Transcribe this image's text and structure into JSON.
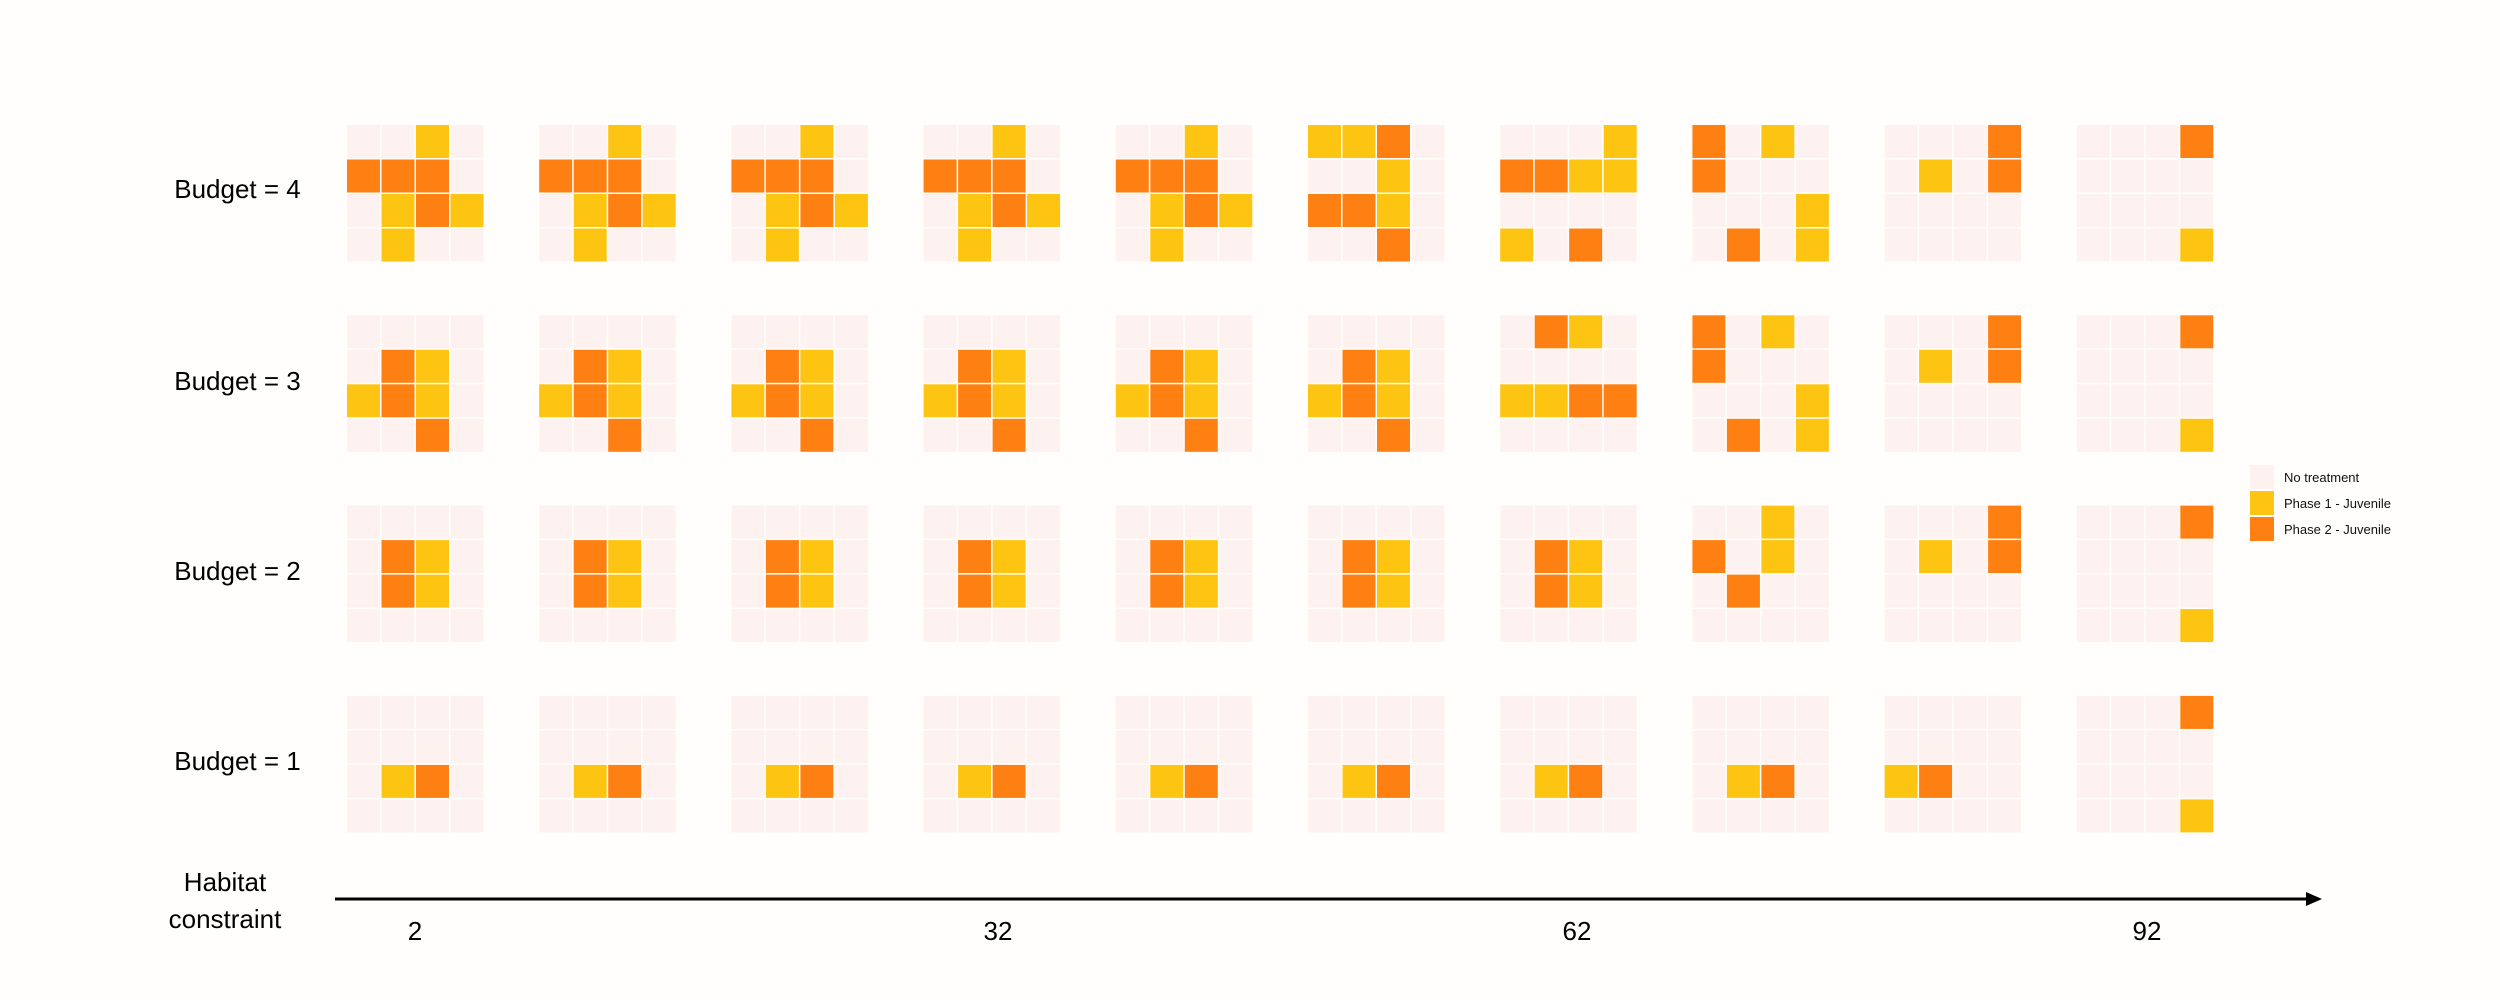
{
  "rows": [
    {
      "label": "Budget = 4"
    },
    {
      "label": "Budget = 3"
    },
    {
      "label": "Budget = 2"
    },
    {
      "label": "Budget = 1"
    }
  ],
  "axis": {
    "title": "Habitat constraint",
    "ticks": [
      "2",
      "32",
      "62",
      "92"
    ]
  },
  "legend": [
    {
      "label": "No treatment",
      "color": "#fdf2ef"
    },
    {
      "label": "Phase 1 - Juvenile",
      "color": "#fdc512"
    },
    {
      "label": "Phase 2 - Juvenile",
      "color": "#fe8012"
    }
  ],
  "colors": {
    "none": "#fdf2ef",
    "phase1": "#fdc512",
    "phase2": "#fe8012",
    "axis": "#000000"
  },
  "grids": [
    [
      [
        "0010",
        "2220",
        "0121",
        "0100"
      ],
      [
        "0010",
        "2220",
        "0121",
        "0100"
      ],
      [
        "0010",
        "2220",
        "0121",
        "0100"
      ],
      [
        "0010",
        "2220",
        "0121",
        "0100"
      ],
      [
        "0010",
        "2220",
        "0121",
        "0100"
      ],
      [
        "1120",
        "0010",
        "2210",
        "0020"
      ],
      [
        "0001",
        "2211",
        "0000",
        "1020"
      ],
      [
        "2010",
        "2000",
        "0001",
        "0201"
      ],
      [
        "0002",
        "0102",
        "0000",
        "0000"
      ],
      [
        "0002",
        "0000",
        "0000",
        "0001"
      ]
    ],
    [
      [
        "0000",
        "0210",
        "1210",
        "0020"
      ],
      [
        "0000",
        "0210",
        "1210",
        "0020"
      ],
      [
        "0000",
        "0210",
        "1210",
        "0020"
      ],
      [
        "0000",
        "0210",
        "1210",
        "0020"
      ],
      [
        "0000",
        "0210",
        "1210",
        "0020"
      ],
      [
        "0000",
        "0210",
        "1210",
        "0020"
      ],
      [
        "0210",
        "0000",
        "1122",
        "0000"
      ],
      [
        "2010",
        "2000",
        "0001",
        "0201"
      ],
      [
        "0002",
        "0102",
        "0000",
        "0000"
      ],
      [
        "0002",
        "0000",
        "0000",
        "0001"
      ]
    ],
    [
      [
        "0000",
        "0210",
        "0210",
        "0000"
      ],
      [
        "0000",
        "0210",
        "0210",
        "0000"
      ],
      [
        "0000",
        "0210",
        "0210",
        "0000"
      ],
      [
        "0000",
        "0210",
        "0210",
        "0000"
      ],
      [
        "0000",
        "0210",
        "0210",
        "0000"
      ],
      [
        "0000",
        "0210",
        "0210",
        "0000"
      ],
      [
        "0000",
        "0210",
        "0210",
        "0000"
      ],
      [
        "0010",
        "2010",
        "0200",
        "0000"
      ],
      [
        "0002",
        "0102",
        "0000",
        "0000"
      ],
      [
        "0002",
        "0000",
        "0000",
        "0001"
      ]
    ],
    [
      [
        "0000",
        "0000",
        "0120",
        "0000"
      ],
      [
        "0000",
        "0000",
        "0120",
        "0000"
      ],
      [
        "0000",
        "0000",
        "0120",
        "0000"
      ],
      [
        "0000",
        "0000",
        "0120",
        "0000"
      ],
      [
        "0000",
        "0000",
        "0120",
        "0000"
      ],
      [
        "0000",
        "0000",
        "0120",
        "0000"
      ],
      [
        "0000",
        "0000",
        "0120",
        "0000"
      ],
      [
        "0000",
        "0000",
        "0120",
        "0000"
      ],
      [
        "0000",
        "0000",
        "1200",
        "0000"
      ],
      [
        "0002",
        "0000",
        "0000",
        "0001"
      ]
    ]
  ]
}
